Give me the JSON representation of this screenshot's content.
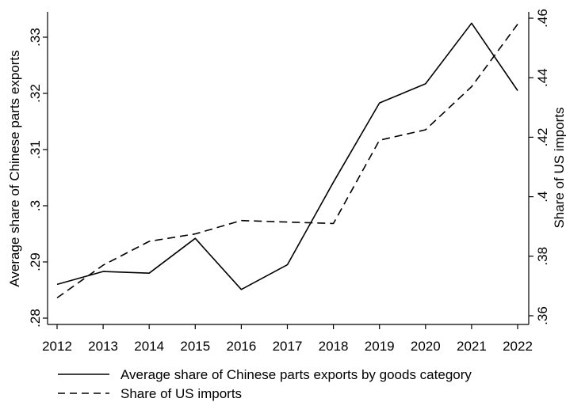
{
  "chart_data": {
    "type": "line",
    "title": "",
    "x": [
      2012,
      2013,
      2014,
      2015,
      2016,
      2017,
      2018,
      2019,
      2020,
      2021,
      2022
    ],
    "xlabel": "",
    "xlim": [
      2012,
      2022
    ],
    "y_left": {
      "label": "Average share of Chinese parts exports",
      "lim": [
        0.28,
        0.335
      ],
      "ticks": [
        0.28,
        0.29,
        0.3,
        0.31,
        0.32,
        0.33
      ],
      "tick_labels": [
        ".28",
        ".29",
        ".3",
        ".31",
        ".32",
        ".33"
      ]
    },
    "y_right": {
      "label": "Share of US imports",
      "lim": [
        0.36,
        0.46
      ],
      "ticks": [
        0.36,
        0.38,
        0.4,
        0.42,
        0.44,
        0.46
      ],
      "tick_labels": [
        ".36",
        ".38",
        ".4",
        ".42",
        ".44",
        ".46"
      ]
    },
    "series": [
      {
        "name": "Average share of Chinese parts exports by goods category",
        "axis": "left",
        "style": "solid",
        "color": "#000000",
        "values": [
          0.286,
          0.2883,
          0.288,
          0.2942,
          0.2851,
          0.2895,
          0.3042,
          0.3183,
          0.3217,
          0.3325,
          0.3205
        ]
      },
      {
        "name": "Share of US imports",
        "axis": "right",
        "style": "dashed",
        "color": "#000000",
        "values": [
          0.366,
          0.377,
          0.385,
          0.3875,
          0.392,
          0.3915,
          0.391,
          0.419,
          0.4225,
          0.437,
          0.458
        ]
      }
    ],
    "grid": false,
    "legend_position": "bottom"
  }
}
